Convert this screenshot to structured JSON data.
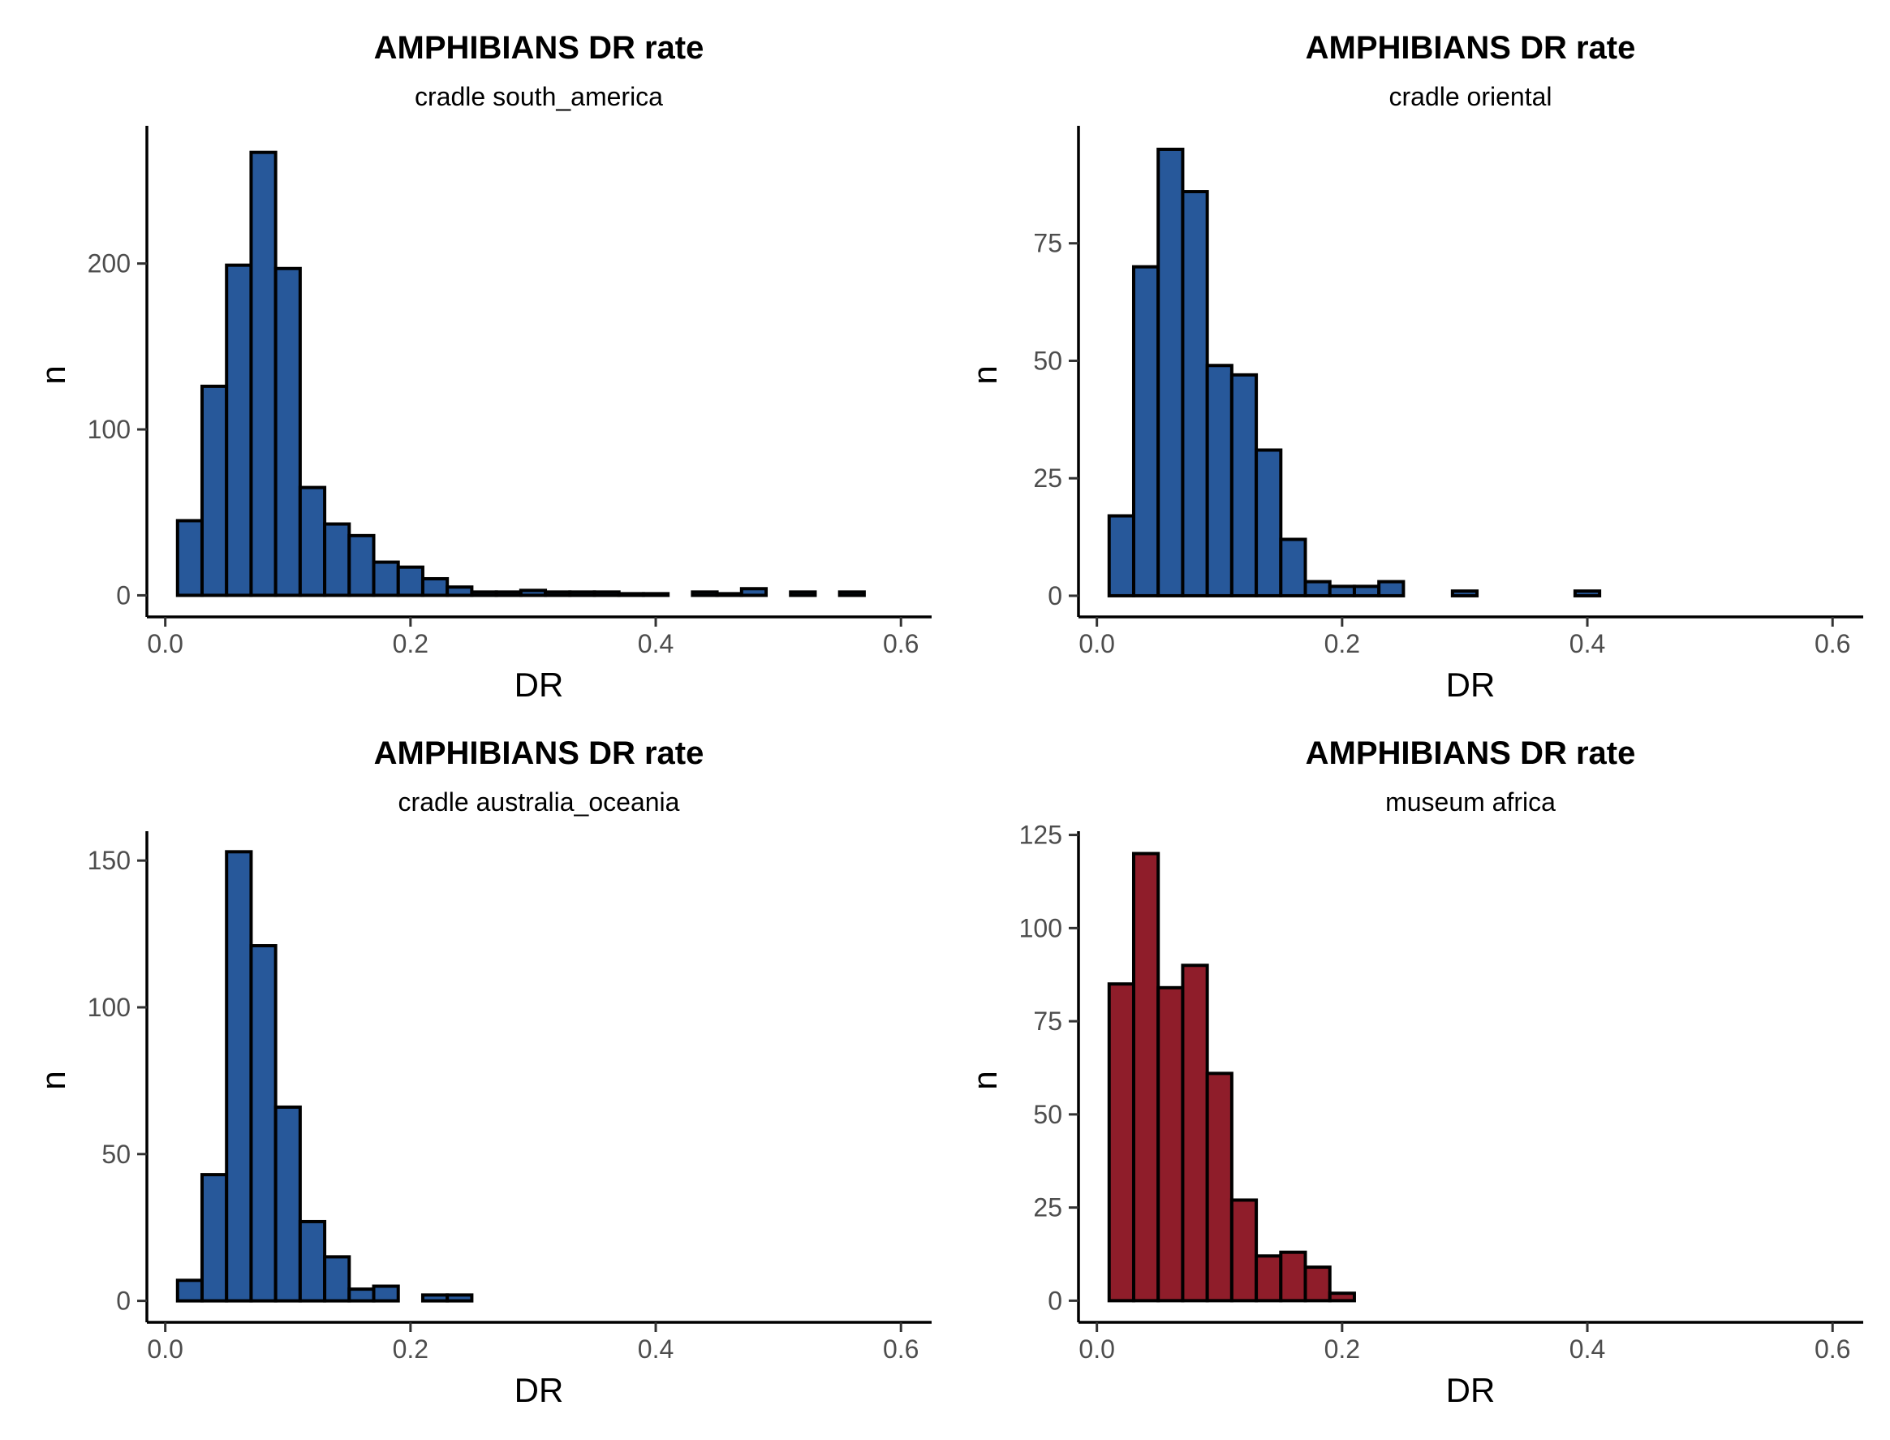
{
  "chart_data": [
    {
      "type": "bar",
      "title": "AMPHIBIANS DR rate",
      "subtitle": "cradle south_america",
      "xlabel": "DR",
      "ylabel": "n",
      "xlim": [
        -0.015,
        0.625
      ],
      "ylim": [
        -13,
        283
      ],
      "xticks": [
        0.0,
        0.2,
        0.4,
        0.6
      ],
      "xtick_labels": [
        "0.0",
        "0.2",
        "0.4",
        "0.6"
      ],
      "yticks": [
        0,
        100,
        200
      ],
      "ytick_labels": [
        "0",
        "100",
        "200"
      ],
      "bin_start": 0.01,
      "bin_width": 0.02,
      "fill": "#27589a",
      "values": [
        45,
        126,
        199,
        267,
        197,
        65,
        43,
        36,
        20,
        17,
        10,
        5,
        2,
        2,
        3,
        2,
        2,
        2,
        1,
        1,
        0,
        2,
        1,
        4,
        0,
        2,
        0,
        2,
        0
      ]
    },
    {
      "type": "bar",
      "title": "AMPHIBIANS DR rate",
      "subtitle": "cradle oriental",
      "xlabel": "DR",
      "ylabel": "n",
      "xlim": [
        -0.015,
        0.625
      ],
      "ylim": [
        -4.5,
        100
      ],
      "xticks": [
        0.0,
        0.2,
        0.4,
        0.6
      ],
      "xtick_labels": [
        "0.0",
        "0.2",
        "0.4",
        "0.6"
      ],
      "yticks": [
        0,
        25,
        50,
        75
      ],
      "ytick_labels": [
        "0",
        "25",
        "50",
        "75"
      ],
      "bin_start": 0.01,
      "bin_width": 0.02,
      "fill": "#27589a",
      "values": [
        17,
        70,
        95,
        86,
        49,
        47,
        31,
        12,
        3,
        2,
        2,
        3,
        0,
        0,
        1,
        0,
        0,
        0,
        0,
        1,
        0,
        0,
        0,
        0,
        0,
        0,
        0,
        0,
        0
      ]
    },
    {
      "type": "bar",
      "title": "AMPHIBIANS DR rate",
      "subtitle": "cradle australia_oceania",
      "xlabel": "DR",
      "ylabel": "n",
      "xlim": [
        -0.015,
        0.625
      ],
      "ylim": [
        -7.3,
        160
      ],
      "xticks": [
        0.0,
        0.2,
        0.4,
        0.6
      ],
      "xtick_labels": [
        "0.0",
        "0.2",
        "0.4",
        "0.6"
      ],
      "yticks": [
        0,
        50,
        100,
        150
      ],
      "ytick_labels": [
        "0",
        "50",
        "100",
        "150"
      ],
      "bin_start": 0.01,
      "bin_width": 0.02,
      "fill": "#27589a",
      "values": [
        7,
        43,
        153,
        121,
        66,
        27,
        15,
        4,
        5,
        0,
        2,
        2,
        0,
        0,
        0,
        0,
        0,
        0,
        0,
        0,
        0,
        0,
        0,
        0,
        0,
        0,
        0,
        0,
        0
      ]
    },
    {
      "type": "bar",
      "title": "AMPHIBIANS DR rate",
      "subtitle": "museum africa",
      "xlabel": "DR",
      "ylabel": "n",
      "xlim": [
        -0.015,
        0.625
      ],
      "ylim": [
        -5.8,
        126
      ],
      "xticks": [
        0.0,
        0.2,
        0.4,
        0.6
      ],
      "xtick_labels": [
        "0.0",
        "0.2",
        "0.4",
        "0.6"
      ],
      "yticks": [
        0,
        25,
        50,
        75,
        100,
        125
      ],
      "ytick_labels": [
        "0",
        "25",
        "50",
        "75",
        "100",
        "125"
      ],
      "bin_start": 0.01,
      "bin_width": 0.02,
      "fill": "#8f1d2a",
      "values": [
        85,
        120,
        84,
        90,
        61,
        27,
        12,
        13,
        9,
        2,
        0,
        0,
        0,
        0,
        0,
        0,
        0,
        0,
        0,
        0,
        0,
        0,
        0,
        0,
        0,
        0,
        0,
        0,
        0
      ]
    }
  ]
}
